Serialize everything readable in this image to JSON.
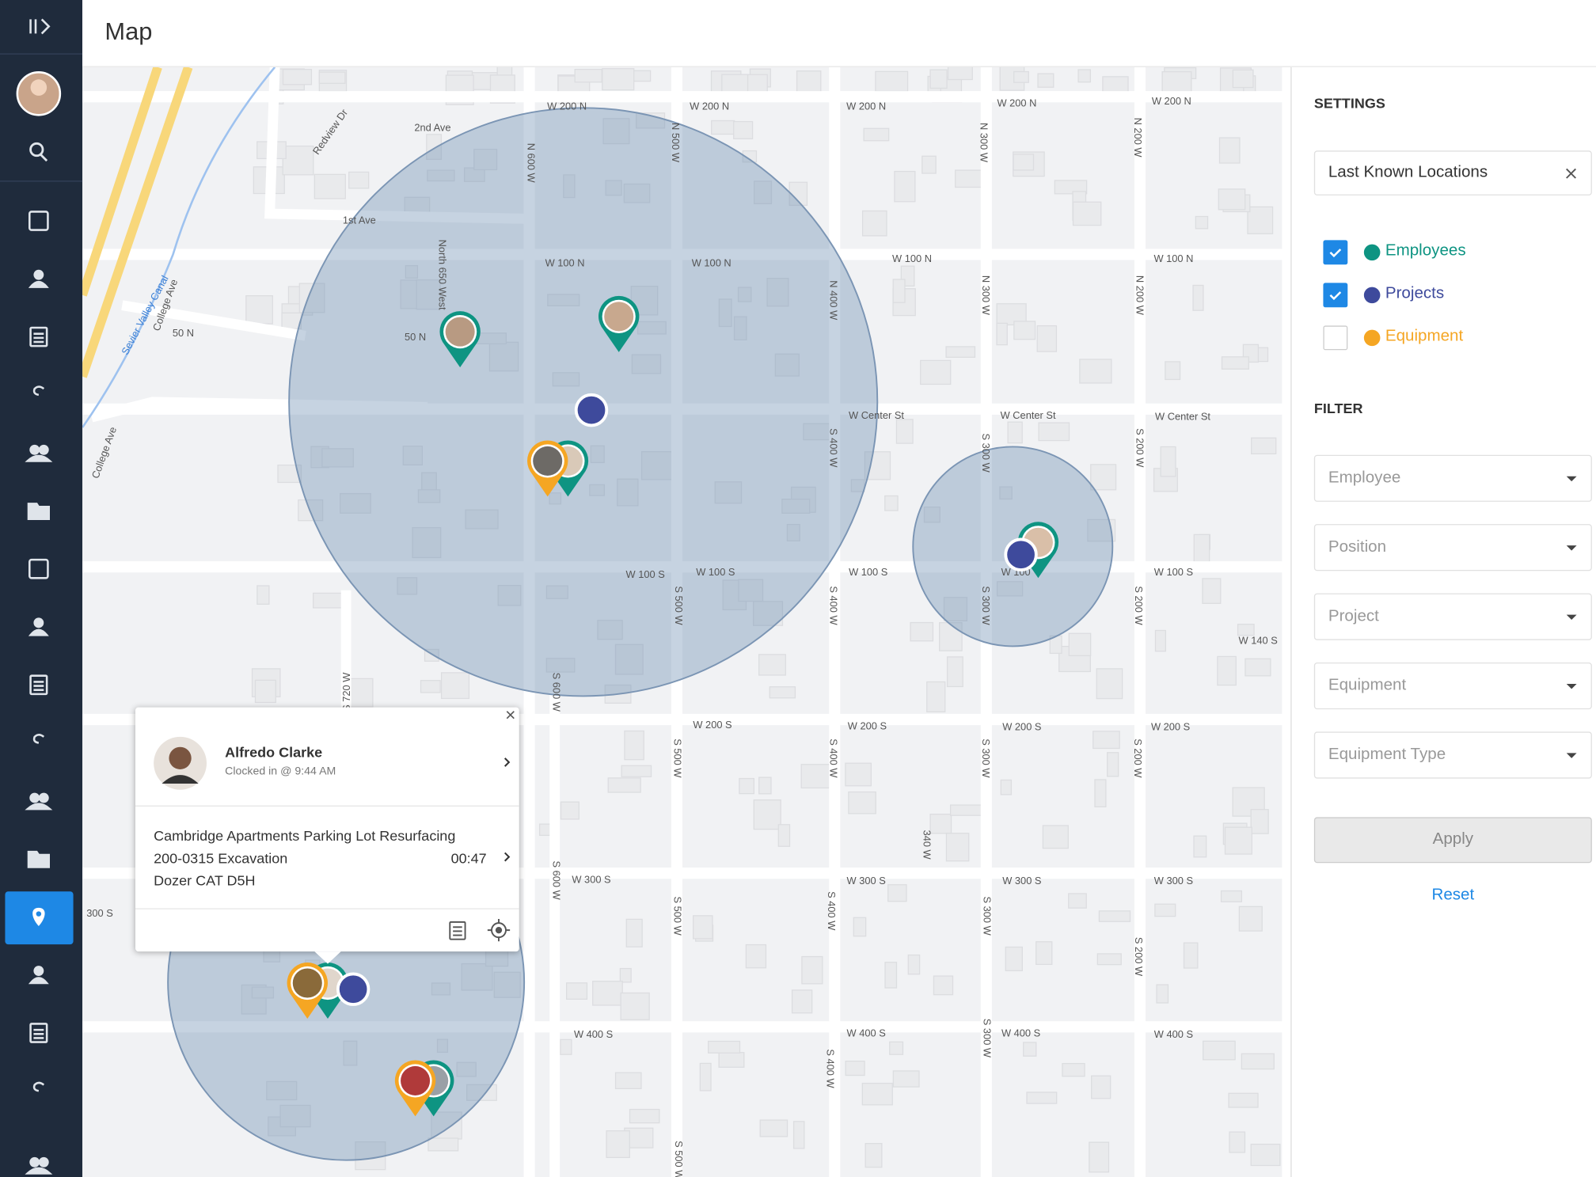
{
  "header": {
    "title": "Map"
  },
  "settings": {
    "heading": "SETTINGS",
    "location_mode": "Last Known Locations",
    "layers": [
      {
        "label": "Employees",
        "checked": true,
        "color": "#0e9482"
      },
      {
        "label": "Projects",
        "checked": true,
        "color": "#3e4a9c"
      },
      {
        "label": "Equipment",
        "checked": false,
        "color": "#f5a623"
      }
    ]
  },
  "filter": {
    "heading": "FILTER",
    "fields": [
      "Employee",
      "Position",
      "Project",
      "Equipment",
      "Equipment Type"
    ],
    "apply": "Apply",
    "reset": "Reset"
  },
  "popup": {
    "name": "Alfredo Clarke",
    "status": "Clocked in @ 9:44 AM",
    "project": "Cambridge Apartments Parking Lot Resurfacing",
    "cost_code": "200-0315 Excavation",
    "duration": "00:47",
    "equipment": "Dozer CAT D5H"
  },
  "map": {
    "streets": [
      "W 200 N",
      "W 200 N",
      "W 200 N",
      "W 200 N",
      "W 200 N",
      "2nd Ave",
      "Redview Dr",
      "1st Ave",
      "W 100 N",
      "W 100 N",
      "W 100 N",
      "W 100 N",
      "50 N",
      "50 N",
      "W Center St",
      "W Center St",
      "W Center St",
      "W 100 S",
      "W 100 S",
      "W 100 S",
      "W 100 S",
      "W 100",
      "W 140 S",
      "W 200 S",
      "W 200 S",
      "W 200 S",
      "W 200 S",
      "W 300 S",
      "W 300 S",
      "W 300 S",
      "W 300 S",
      "300 S",
      "W 400 S",
      "W 400 S",
      "W 400 S",
      "W 400 S",
      "N 600 W",
      "N 500 W",
      "N 400 W",
      "N 300 W",
      "N 300 W",
      "N 200 W",
      "N 200 W",
      "S 400 W",
      "S 400 W",
      "S 400 W",
      "S 400 W",
      "S 400 W",
      "S 300 W",
      "S 300 W",
      "S 300 W",
      "S 300 W",
      "S 300 W",
      "S 200 W",
      "S 200 W",
      "S 200 W",
      "S 200 W",
      "S 500 W",
      "S 500 W",
      "S 500 W",
      "S 500 W",
      "S 600 W",
      "S 600 W",
      "S 720 W",
      "340 W",
      "North 650 West",
      "College Ave",
      "College Ave",
      "Sevier Valley Canal"
    ]
  }
}
